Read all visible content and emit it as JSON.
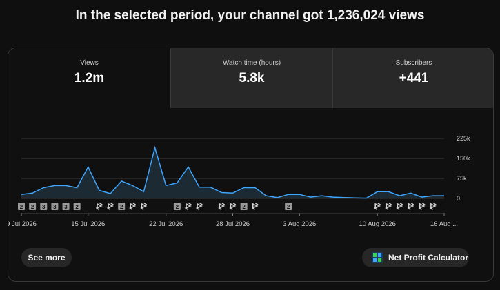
{
  "headline": "In the selected period, your channel got 1,236,024 views",
  "tabs": [
    {
      "label": "Views",
      "value": "1.2m"
    },
    {
      "label": "Watch time (hours)",
      "value": "5.8k"
    },
    {
      "label": "Subscribers",
      "value": "+441"
    }
  ],
  "buttons": {
    "see_more": "See more",
    "calculator": "Net Profit Calculator"
  },
  "chart_data": {
    "type": "area",
    "series": [
      {
        "values": [
          15000,
          20000,
          40000,
          48000,
          48000,
          40000,
          118000,
          30000,
          18000,
          65000,
          48000,
          25000,
          190000,
          48000,
          58000,
          118000,
          42000,
          42000,
          22000,
          20000,
          40000,
          40000,
          10000,
          3000,
          15000,
          15000,
          5000,
          10000,
          5000,
          3000,
          2000,
          1000,
          25000,
          25000,
          10000,
          20000,
          5000,
          10000,
          10000
        ]
      }
    ],
    "x_tick_labels": [
      "9 Jul 2026",
      "15 Jul 2026",
      "22 Jul 2026",
      "28 Jul 2026",
      "3 Aug 2026",
      "10 Aug 2026",
      "16 Aug ..."
    ],
    "x_tick_indices": [
      0,
      6,
      13,
      19,
      25,
      32,
      38
    ],
    "y_ticks": [
      0,
      75000,
      150000,
      225000
    ],
    "y_tick_labels": [
      "0",
      "75k",
      "150k",
      "225k"
    ],
    "ylim": [
      0,
      225000
    ],
    "grid": true,
    "colors": {
      "line": "#3ea6ff",
      "fill": "#1c2a33",
      "grid": "#3a3a3a",
      "text": "#cfcfcf"
    }
  },
  "markers": [
    {
      "type": "badge",
      "text": "2",
      "index": 0
    },
    {
      "type": "badge",
      "text": "2",
      "index": 1
    },
    {
      "type": "badge",
      "text": "3",
      "index": 2
    },
    {
      "type": "badge",
      "text": "3",
      "index": 3
    },
    {
      "type": "badge",
      "text": "3",
      "index": 4
    },
    {
      "type": "badge",
      "text": "2",
      "index": 5
    },
    {
      "type": "shorts",
      "index": 7
    },
    {
      "type": "shorts",
      "index": 8
    },
    {
      "type": "badge",
      "text": "2",
      "index": 9
    },
    {
      "type": "shorts",
      "index": 10
    },
    {
      "type": "shorts",
      "index": 11
    },
    {
      "type": "badge",
      "text": "2",
      "index": 14
    },
    {
      "type": "shorts",
      "index": 15
    },
    {
      "type": "shorts",
      "index": 16
    },
    {
      "type": "shorts",
      "index": 18
    },
    {
      "type": "shorts",
      "index": 19
    },
    {
      "type": "badge",
      "text": "2",
      "index": 20
    },
    {
      "type": "shorts",
      "index": 21
    },
    {
      "type": "badge",
      "text": "2",
      "index": 24
    },
    {
      "type": "shorts",
      "index": 32
    },
    {
      "type": "shorts",
      "index": 33
    },
    {
      "type": "shorts",
      "index": 34
    },
    {
      "type": "shorts",
      "index": 35
    },
    {
      "type": "shorts",
      "index": 36
    },
    {
      "type": "shorts",
      "index": 37
    }
  ]
}
